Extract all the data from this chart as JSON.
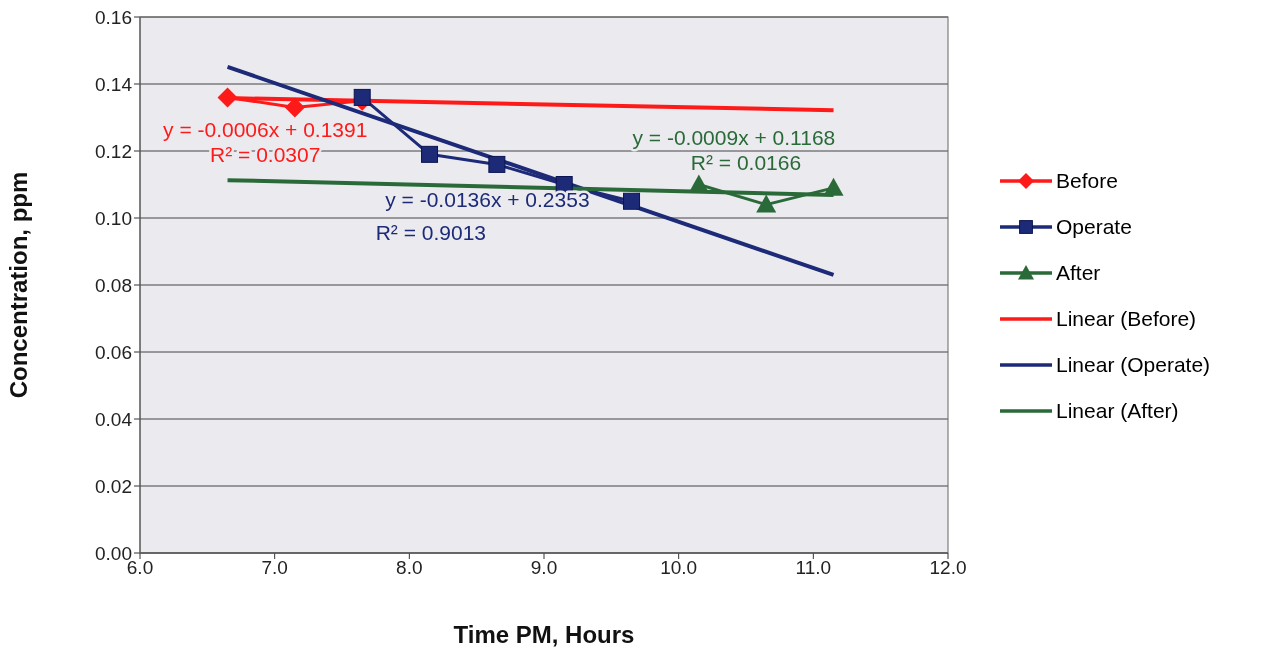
{
  "chart_data": {
    "type": "line",
    "xlabel": "Time PM, Hours",
    "ylabel": "Concentration, ppm",
    "xlim": [
      6.0,
      12.0
    ],
    "xticks": [
      {
        "value": 6,
        "label": "6.0"
      },
      {
        "value": 7,
        "label": "7.0"
      },
      {
        "value": 8,
        "label": "8.0"
      },
      {
        "value": 9,
        "label": "9.0"
      },
      {
        "value": 10,
        "label": "10.0"
      },
      {
        "value": 11,
        "label": "11.0"
      },
      {
        "value": 12,
        "label": "12.0"
      }
    ],
    "ylim": [
      0,
      0.16
    ],
    "yticks": [
      {
        "value": 0,
        "label": "0.00"
      },
      {
        "value": 0.02,
        "label": "0.02"
      },
      {
        "value": 0.04,
        "label": "0.04"
      },
      {
        "value": 0.06,
        "label": "0.06"
      },
      {
        "value": 0.08,
        "label": "0.08"
      },
      {
        "value": 0.1,
        "label": "0.10"
      },
      {
        "value": 0.12,
        "label": "0.12"
      },
      {
        "value": 0.14,
        "label": "0.14"
      },
      {
        "value": 0.16,
        "label": "0.16"
      }
    ],
    "grid": "y",
    "legend": "right",
    "series": [
      {
        "name": "Before",
        "color": "#ff1a1a",
        "marker": "diamond",
        "x": [
          6.65,
          7.15,
          7.65
        ],
        "values": [
          0.136,
          0.133,
          0.135
        ]
      },
      {
        "name": "Operate",
        "color": "#1c2a78",
        "marker": "square",
        "x": [
          7.65,
          8.15,
          8.65,
          9.15,
          9.65
        ],
        "values": [
          0.136,
          0.119,
          0.116,
          0.11,
          0.105
        ]
      },
      {
        "name": "After",
        "color": "#2a6a38",
        "marker": "triangle",
        "x": [
          10.15,
          10.65,
          11.15
        ],
        "values": [
          0.11,
          0.104,
          0.109
        ]
      },
      {
        "name": "Linear (Before)",
        "color": "#ff1a1a",
        "marker": "none",
        "x": [
          6.65,
          11.15
        ],
        "values": [
          0.1358,
          0.1322
        ]
      },
      {
        "name": "Linear (Operate)",
        "color": "#1c2a78",
        "marker": "none",
        "x": [
          6.65,
          11.15
        ],
        "values": [
          0.1451,
          0.083
        ]
      },
      {
        "name": "Linear (After)",
        "color": "#2a6a38",
        "marker": "none",
        "x": [
          6.65,
          11.15
        ],
        "values": [
          0.1113,
          0.1069
        ]
      }
    ],
    "annotations": [
      "y = -0.0006x + 0.1391",
      "R² = 0.0307",
      "y = -0.0136x + 0.2353",
      "R² = 0.9013",
      "y = -0.0009x + 0.1168",
      "R² = 0.0166"
    ]
  }
}
